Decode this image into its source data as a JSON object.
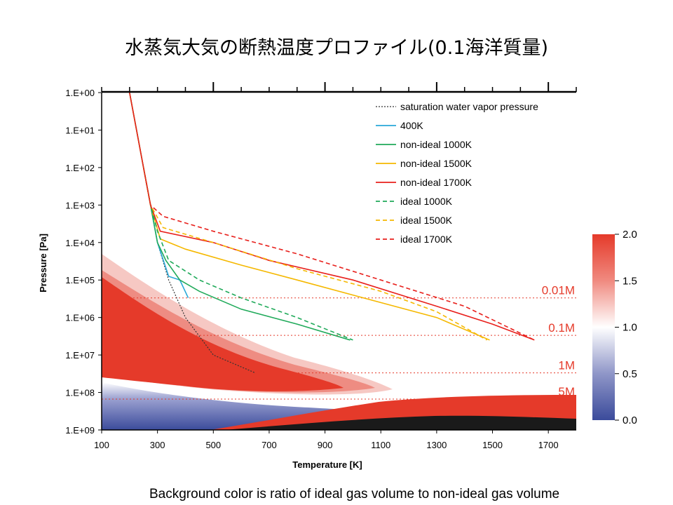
{
  "slide": {
    "title": "水蒸気大気の断熱温度プロファイル(0.1海洋質量)",
    "caption": "Background color is ratio of ideal gas volume to non-ideal gas volume"
  },
  "chart_data": {
    "type": "line",
    "xlabel": "Temperature [K]",
    "ylabel": "Pressure [Pa]",
    "xlim": [
      100,
      1800
    ],
    "ylim": [
      1,
      1000000000
    ],
    "y_scale": "log",
    "y_inverted": true,
    "x_ticks": [
      "100",
      "300",
      "500",
      "700",
      "900",
      "1100",
      "1300",
      "1500",
      "1700"
    ],
    "y_ticks": [
      "1.E+00",
      "1.E+01",
      "1.E+02",
      "1.E+03",
      "1.E+04",
      "1.E+05",
      "1.E+06",
      "1.E+07",
      "1.E+08",
      "1.E+09"
    ],
    "y_tick_values": [
      1,
      10,
      100,
      1000,
      10000,
      100000,
      1000000,
      10000000,
      100000000,
      1000000000
    ],
    "legend_position": "top-right",
    "series": [
      {
        "name": "saturation water vapor pressure",
        "color": "#333333",
        "dash": "dotted",
        "points": [
          [
            200,
            1
          ],
          [
            225,
            10
          ],
          [
            250,
            100
          ],
          [
            275,
            1000
          ],
          [
            300,
            10000
          ],
          [
            340,
            100000
          ],
          [
            400,
            1000000
          ],
          [
            500,
            10000000
          ],
          [
            650,
            30000000
          ]
        ]
      },
      {
        "name": "400K",
        "color": "#2aa8d8",
        "dash": "solid",
        "points": [
          [
            200,
            1
          ],
          [
            225,
            10
          ],
          [
            250,
            100
          ],
          [
            275,
            1000
          ],
          [
            300,
            10000
          ],
          [
            340,
            80000
          ],
          [
            380,
            100000
          ],
          [
            410,
            300000
          ]
        ]
      },
      {
        "name": "non-ideal 1000K",
        "color": "#20aa5a",
        "dash": "solid",
        "points": [
          [
            200,
            1
          ],
          [
            250,
            100
          ],
          [
            275,
            1000
          ],
          [
            300,
            10000
          ],
          [
            330,
            30000
          ],
          [
            380,
            100000
          ],
          [
            450,
            200000
          ],
          [
            600,
            600000
          ],
          [
            800,
            1500000
          ],
          [
            990,
            4000000
          ]
        ]
      },
      {
        "name": "non-ideal 1500K",
        "color": "#f5b800",
        "dash": "solid",
        "points": [
          [
            200,
            1
          ],
          [
            250,
            100
          ],
          [
            275,
            1000
          ],
          [
            310,
            8000
          ],
          [
            400,
            15000
          ],
          [
            600,
            40000
          ],
          [
            800,
            100000
          ],
          [
            1100,
            400000
          ],
          [
            1300,
            1000000
          ],
          [
            1490,
            4000000
          ]
        ]
      },
      {
        "name": "non-ideal 1700K",
        "color": "#e8201c",
        "dash": "solid",
        "points": [
          [
            200,
            1
          ],
          [
            250,
            100
          ],
          [
            275,
            1000
          ],
          [
            310,
            5000
          ],
          [
            500,
            10000
          ],
          [
            700,
            30000
          ],
          [
            1000,
            100000
          ],
          [
            1300,
            500000
          ],
          [
            1500,
            1500000
          ],
          [
            1650,
            4000000
          ]
        ]
      },
      {
        "name": "ideal 1000K",
        "color": "#20aa5a",
        "dash": "dashed",
        "points": [
          [
            250,
            100
          ],
          [
            275,
            1000
          ],
          [
            300,
            5000
          ],
          [
            340,
            30000
          ],
          [
            450,
            100000
          ],
          [
            600,
            300000
          ],
          [
            800,
            1000000
          ],
          [
            1000,
            4000000
          ]
        ]
      },
      {
        "name": "ideal 1500K",
        "color": "#f5b800",
        "dash": "dashed",
        "points": [
          [
            250,
            100
          ],
          [
            275,
            1000
          ],
          [
            320,
            4000
          ],
          [
            500,
            10000
          ],
          [
            800,
            50000
          ],
          [
            1100,
            200000
          ],
          [
            1300,
            700000
          ],
          [
            1480,
            4000000
          ]
        ]
      },
      {
        "name": "ideal 1700K",
        "color": "#e8201c",
        "dash": "dashed",
        "points": [
          [
            250,
            100
          ],
          [
            275,
            1000
          ],
          [
            320,
            2000
          ],
          [
            500,
            5000
          ],
          [
            800,
            20000
          ],
          [
            1100,
            100000
          ],
          [
            1400,
            500000
          ],
          [
            1650,
            4000000
          ]
        ]
      }
    ],
    "reference_lines": [
      {
        "label": "0.01M",
        "pressure": 300000
      },
      {
        "label": "0.1M",
        "pressure": 3000000
      },
      {
        "label": "1M",
        "pressure": 30000000
      },
      {
        "label": "5M",
        "pressure": 150000000
      }
    ],
    "colorbar": {
      "min": 0.0,
      "max": 2.0,
      "ticks": [
        "2.0",
        "1.5",
        "1.0",
        "0.5",
        "0.0"
      ],
      "colors": {
        "low": "#3b4b9b",
        "mid": "#ffffff",
        "high": "#e53a2a"
      }
    }
  }
}
